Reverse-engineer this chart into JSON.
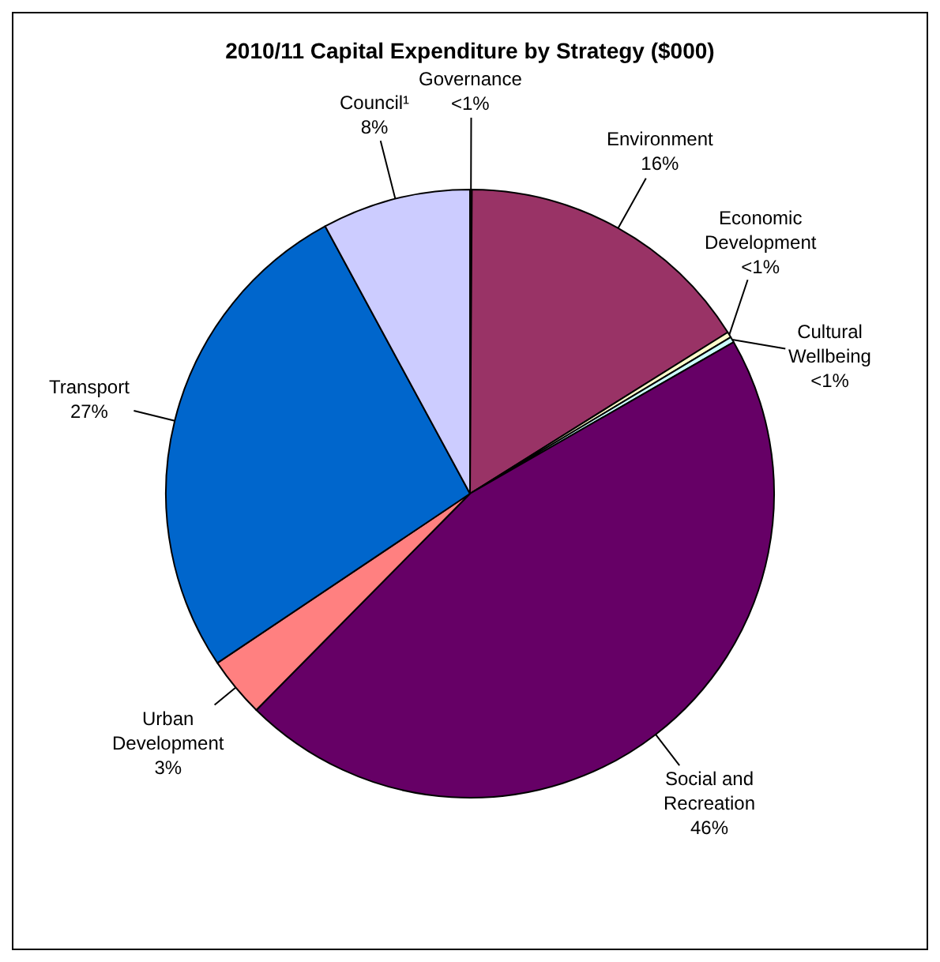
{
  "chart_data": {
    "type": "pie",
    "title": "2010/11 Capital Expenditure by Strategy ($000)",
    "categories": [
      "Governance",
      "Environment",
      "Economic Development",
      "Cultural Wellbeing",
      "Social and Recreation",
      "Urban Development",
      "Transport",
      "Council¹"
    ],
    "values": [
      0.1,
      16.0,
      0.3,
      0.3,
      45.7,
      3.2,
      26.5,
      7.9
    ],
    "value_labels": [
      "<1%",
      "16%",
      "<1%",
      "<1%",
      "46%",
      "3%",
      "27%",
      "8%"
    ],
    "colors": [
      "#800000",
      "#993366",
      "#ffffcc",
      "#ccffff",
      "#660066",
      "#ff8080",
      "#0066cc",
      "#ccccff"
    ],
    "legend": false
  }
}
